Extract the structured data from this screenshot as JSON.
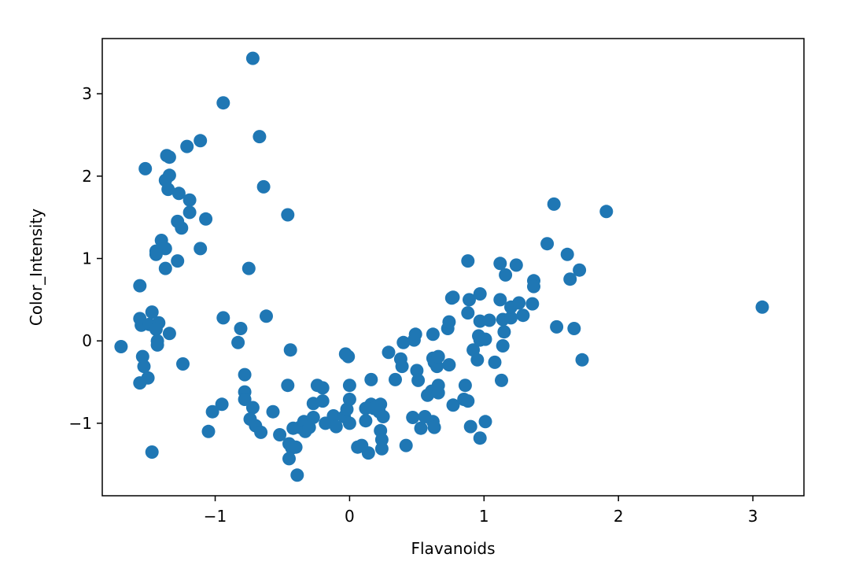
{
  "chart_data": {
    "type": "scatter",
    "title": "",
    "xlabel": "Flavanoids",
    "ylabel": "Color_Intensity",
    "xlim": [
      -1.84,
      3.38
    ],
    "ylim": [
      -1.88,
      3.67
    ],
    "xticks": [
      -1,
      0,
      1,
      2,
      3
    ],
    "yticks": [
      -1,
      0,
      1,
      2,
      3
    ],
    "grid": false,
    "legend": "none",
    "marker_color": "#1f77b4",
    "series": [
      {
        "points": [
          [
            -0.72,
            3.43
          ],
          [
            -0.94,
            2.89
          ],
          [
            -0.67,
            2.48
          ],
          [
            -1.11,
            2.43
          ],
          [
            -1.21,
            2.36
          ],
          [
            -1.36,
            2.25
          ],
          [
            -1.34,
            2.23
          ],
          [
            -1.52,
            2.09
          ],
          [
            -1.34,
            2.01
          ],
          [
            -1.37,
            1.95
          ],
          [
            -0.64,
            1.87
          ],
          [
            -1.35,
            1.84
          ],
          [
            -1.27,
            1.79
          ],
          [
            -1.19,
            1.71
          ],
          [
            -1.19,
            1.56
          ],
          [
            -0.46,
            1.53
          ],
          [
            -1.07,
            1.48
          ],
          [
            -1.28,
            1.45
          ],
          [
            -1.25,
            1.37
          ],
          [
            -1.4,
            1.22
          ],
          [
            -1.37,
            1.12
          ],
          [
            -1.11,
            1.12
          ],
          [
            -1.44,
            1.09
          ],
          [
            -1.44,
            1.05
          ],
          [
            -1.28,
            0.97
          ],
          [
            -1.37,
            0.88
          ],
          [
            -0.75,
            0.88
          ],
          [
            -1.56,
            0.67
          ],
          [
            -1.47,
            0.35
          ],
          [
            -0.94,
            0.28
          ],
          [
            -1.56,
            0.27
          ],
          [
            -1.42,
            0.22
          ],
          [
            -1.55,
            0.19
          ],
          [
            -1.49,
            0.2
          ],
          [
            -0.62,
            0.3
          ],
          [
            -1.44,
            0.14
          ],
          [
            -0.81,
            0.15
          ],
          [
            -1.34,
            0.09
          ],
          [
            -1.43,
            0.0
          ],
          [
            -1.43,
            -0.05
          ],
          [
            -0.83,
            -0.02
          ],
          [
            -1.7,
            -0.07
          ],
          [
            -0.44,
            -0.11
          ],
          [
            -1.54,
            -0.19
          ],
          [
            -1.53,
            -0.31
          ],
          [
            -1.24,
            -0.28
          ],
          [
            -1.5,
            -0.45
          ],
          [
            -1.56,
            -0.51
          ],
          [
            -0.78,
            -0.41
          ],
          [
            -0.46,
            -0.54
          ],
          [
            -0.78,
            -0.62
          ],
          [
            -0.78,
            -0.71
          ],
          [
            -0.72,
            -0.81
          ],
          [
            -0.95,
            -0.77
          ],
          [
            -1.02,
            -0.86
          ],
          [
            -0.57,
            -0.86
          ],
          [
            -0.74,
            -0.95
          ],
          [
            -0.7,
            -1.03
          ],
          [
            -0.66,
            -1.11
          ],
          [
            -1.05,
            -1.1
          ],
          [
            -0.52,
            -1.14
          ],
          [
            -0.45,
            -1.25
          ],
          [
            -0.43,
            -1.3
          ],
          [
            -0.45,
            -1.43
          ],
          [
            -0.4,
            -1.29
          ],
          [
            -1.47,
            -1.35
          ],
          [
            -0.39,
            -1.63
          ],
          [
            -0.42,
            -1.06
          ],
          [
            -0.37,
            -1.05
          ],
          [
            -0.34,
            -0.98
          ],
          [
            -0.33,
            -1.1
          ],
          [
            -0.3,
            -1.05
          ],
          [
            -0.27,
            -0.93
          ],
          [
            -0.27,
            -0.76
          ],
          [
            -0.24,
            -0.54
          ],
          [
            -0.2,
            -0.57
          ],
          [
            -0.2,
            -0.73
          ],
          [
            -0.18,
            -1.0
          ],
          [
            -0.12,
            -0.91
          ],
          [
            -0.1,
            -1.04
          ],
          [
            -0.04,
            -0.92
          ],
          [
            -0.03,
            -0.16
          ],
          [
            -0.01,
            -0.19
          ],
          [
            0.0,
            -0.54
          ],
          [
            -0.02,
            -0.83
          ],
          [
            0.0,
            -0.71
          ],
          [
            0.0,
            -1.0
          ],
          [
            0.06,
            -1.29
          ],
          [
            0.09,
            -1.27
          ],
          [
            0.12,
            -0.97
          ],
          [
            0.12,
            -0.82
          ],
          [
            0.16,
            -0.77
          ],
          [
            0.14,
            -1.36
          ],
          [
            0.16,
            -0.47
          ],
          [
            0.18,
            -0.82
          ],
          [
            0.22,
            -0.86
          ],
          [
            0.23,
            -0.77
          ],
          [
            0.23,
            -1.09
          ],
          [
            0.24,
            -1.2
          ],
          [
            0.24,
            -1.31
          ],
          [
            0.25,
            -0.92
          ],
          [
            0.29,
            -0.14
          ],
          [
            0.34,
            -0.47
          ],
          [
            0.38,
            -0.22
          ],
          [
            0.39,
            -0.31
          ],
          [
            0.4,
            -0.02
          ],
          [
            0.42,
            -1.27
          ],
          [
            0.47,
            -0.93
          ],
          [
            0.48,
            0.01
          ],
          [
            0.49,
            0.08
          ],
          [
            0.5,
            -0.36
          ],
          [
            0.51,
            -0.48
          ],
          [
            0.53,
            -1.06
          ],
          [
            0.56,
            -0.92
          ],
          [
            0.58,
            -0.66
          ],
          [
            0.61,
            -0.61
          ],
          [
            0.62,
            -0.98
          ],
          [
            0.63,
            -1.05
          ],
          [
            0.62,
            0.08
          ],
          [
            0.62,
            -0.21
          ],
          [
            0.63,
            -0.26
          ],
          [
            0.65,
            -0.31
          ],
          [
            0.66,
            -0.19
          ],
          [
            0.66,
            -0.54
          ],
          [
            0.66,
            -0.63
          ],
          [
            0.73,
            0.15
          ],
          [
            0.74,
            0.23
          ],
          [
            0.74,
            -0.29
          ],
          [
            0.76,
            0.52
          ],
          [
            0.77,
            0.53
          ],
          [
            0.77,
            -0.78
          ],
          [
            0.85,
            -0.71
          ],
          [
            0.86,
            -0.54
          ],
          [
            0.88,
            -0.73
          ],
          [
            0.88,
            0.34
          ],
          [
            0.88,
            0.97
          ],
          [
            0.89,
            0.5
          ],
          [
            0.9,
            -1.04
          ],
          [
            0.92,
            -0.11
          ],
          [
            0.95,
            -0.23
          ],
          [
            0.96,
            0.06
          ],
          [
            0.97,
            0.24
          ],
          [
            0.97,
            0.57
          ],
          [
            0.97,
            0.01
          ],
          [
            0.97,
            -1.18
          ],
          [
            1.01,
            0.02
          ],
          [
            1.01,
            -0.98
          ],
          [
            1.04,
            0.25
          ],
          [
            1.08,
            -0.26
          ],
          [
            1.12,
            0.5
          ],
          [
            1.12,
            0.94
          ],
          [
            1.13,
            -0.48
          ],
          [
            1.14,
            -0.06
          ],
          [
            1.14,
            0.26
          ],
          [
            1.15,
            0.11
          ],
          [
            1.16,
            0.8
          ],
          [
            1.2,
            0.28
          ],
          [
            1.2,
            0.41
          ],
          [
            1.24,
            0.92
          ],
          [
            1.26,
            0.46
          ],
          [
            1.29,
            0.31
          ],
          [
            1.36,
            0.45
          ],
          [
            1.37,
            0.73
          ],
          [
            1.37,
            0.66
          ],
          [
            1.47,
            1.18
          ],
          [
            1.52,
            1.66
          ],
          [
            1.54,
            0.17
          ],
          [
            1.62,
            1.05
          ],
          [
            1.64,
            0.75
          ],
          [
            1.67,
            0.15
          ],
          [
            1.71,
            0.86
          ],
          [
            1.73,
            -0.23
          ],
          [
            1.91,
            1.57
          ],
          [
            3.07,
            0.41
          ]
        ]
      }
    ]
  }
}
